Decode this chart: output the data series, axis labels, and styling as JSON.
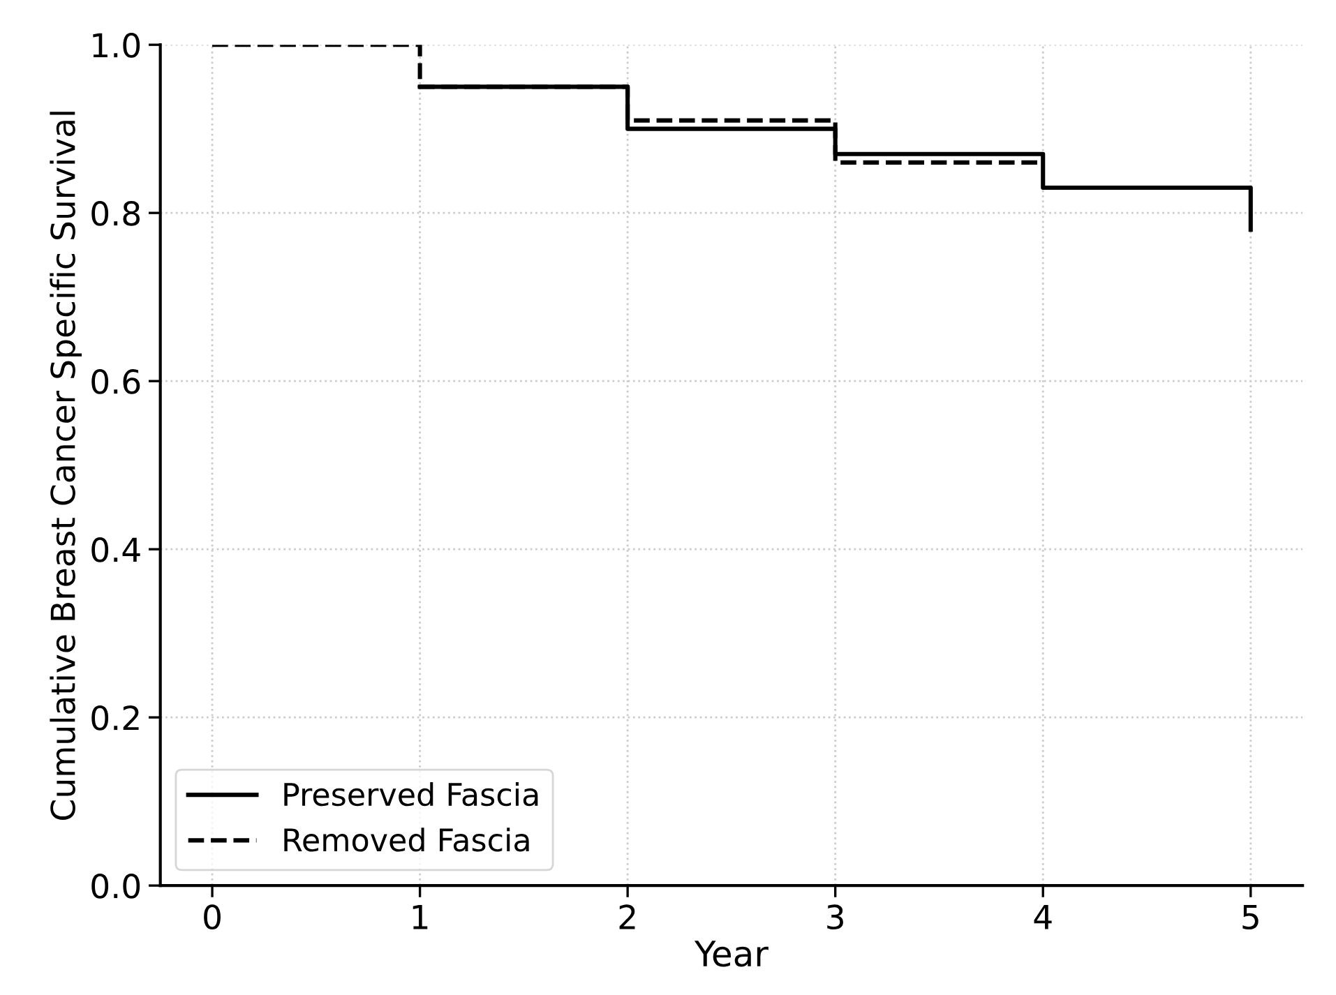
{
  "chart_data": {
    "type": "step",
    "xlabel": "Year",
    "ylabel": "Cumulative Breast Cancer Specific Survival",
    "series": [
      {
        "name": "Preserved Fascia",
        "color": "#000000",
        "line_style": "solid",
        "x": [
          1,
          2,
          3,
          4,
          5,
          5
        ],
        "values": [
          0.95,
          0.9,
          0.87,
          0.83,
          0.83,
          0.78
        ]
      },
      {
        "name": "Removed Fascia",
        "color": "#000000",
        "line_style": "dashed",
        "x": [
          0,
          1,
          2,
          3,
          4
        ],
        "values": [
          1.0,
          0.95,
          0.91,
          0.86,
          0.86
        ]
      }
    ],
    "xlim": [
      -0.25,
      5.25
    ],
    "xticks": [
      0,
      1,
      2,
      3,
      4,
      5
    ],
    "ylim": [
      0,
      1.0
    ],
    "yticks": [
      {
        "value": 0,
        "label": "0.0"
      },
      0.2,
      0.4,
      0.6,
      0.8,
      {
        "value": 1,
        "label": "1.0"
      }
    ],
    "grid": true,
    "legend": "bottom left"
  }
}
